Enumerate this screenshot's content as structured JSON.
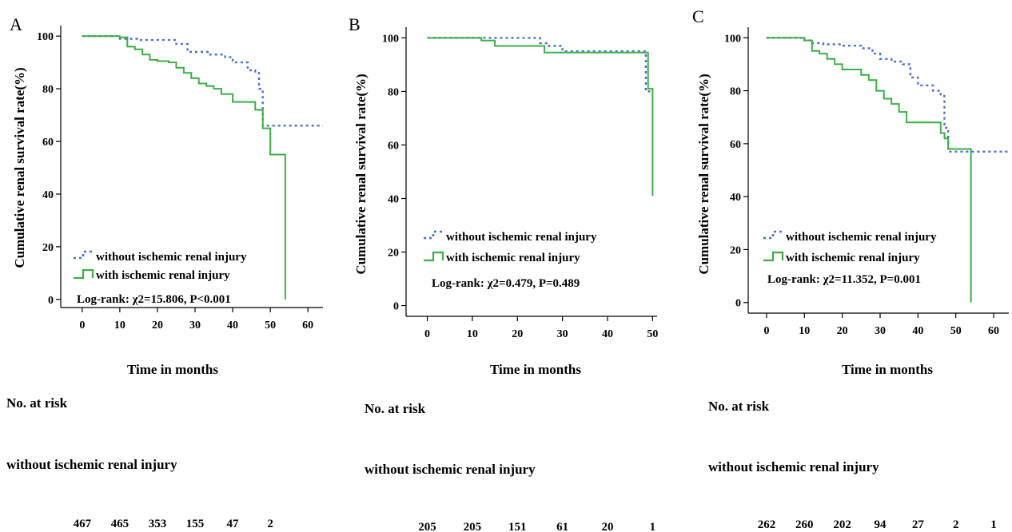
{
  "chart_data": [
    {
      "type": "line",
      "panel": "A",
      "xlabel": "Time in months",
      "ylabel": "Cumulative renal survival rate(%)",
      "xlim": [
        -4,
        64
      ],
      "ylim": [
        -4,
        104
      ],
      "xticks": [
        0,
        10,
        20,
        30,
        40,
        50,
        60
      ],
      "yticks": [
        0,
        20,
        40,
        60,
        80,
        100
      ],
      "legend": "bottom-left",
      "annotation": "Log-rank: χ2=15.806, P<0.001",
      "series": [
        {
          "name": "without ischemic renal injury",
          "color": "#4a6fd1",
          "dash": true,
          "x": [
            0,
            5,
            10,
            12,
            15,
            20,
            24,
            25,
            28,
            30,
            34,
            38,
            40,
            44,
            46,
            47,
            48,
            50,
            55,
            60,
            64
          ],
          "y": [
            100,
            100,
            99,
            99,
            98.5,
            98.5,
            98.5,
            97,
            94,
            94,
            93,
            92,
            90,
            87,
            86,
            80,
            66,
            66,
            66,
            66,
            66
          ]
        },
        {
          "name": "with ischemic renal injury",
          "color": "#3dae47",
          "dash": false,
          "x": [
            0,
            8,
            10,
            12,
            14,
            16,
            18,
            20,
            23,
            25,
            27,
            29,
            31,
            33,
            35,
            37,
            40,
            44,
            46,
            47,
            48,
            49,
            50,
            52,
            54,
            54
          ],
          "y": [
            100,
            100,
            99.5,
            96,
            95,
            93,
            91,
            90.5,
            90,
            88,
            86,
            84,
            82,
            81,
            80,
            78,
            75,
            75,
            72,
            72,
            65,
            65,
            55,
            55,
            55,
            0
          ]
        }
      ],
      "risk_table": {
        "header": "No. at risk",
        "rows": [
          {
            "label": "without ischemic renal injury",
            "x": [
              0,
              10,
              20,
              30,
              40,
              50
            ],
            "values": [
              "467",
              "465",
              "353",
              "155",
              "47",
              "2"
            ]
          }
        ]
      }
    },
    {
      "type": "line",
      "panel": "B",
      "xlabel": "Time in months",
      "ylabel": "Cumulative renal survival rate(%)",
      "xlim": [
        -4,
        51
      ],
      "ylim": [
        -4,
        104
      ],
      "xticks": [
        0,
        10,
        20,
        30,
        40,
        50
      ],
      "yticks": [
        0,
        20,
        40,
        60,
        80,
        100
      ],
      "legend": "bottom-left",
      "annotation": "Log-rank: χ2=0.479, P=0.489",
      "series": [
        {
          "name": "without  ischemic renal injury",
          "color": "#4a6fd1",
          "dash": true,
          "x": [
            0,
            10,
            20,
            24,
            25,
            27,
            30,
            35,
            40,
            45,
            48,
            48.5,
            50
          ],
          "y": [
            100,
            100,
            100,
            100,
            98,
            97,
            95,
            95,
            95,
            95,
            95,
            80,
            80
          ]
        },
        {
          "name": "with ischemic renal injury",
          "color": "#3dae47",
          "dash": false,
          "x": [
            0,
            10,
            12,
            15,
            20,
            25,
            26,
            30,
            35,
            40,
            45,
            48,
            49,
            49,
            50,
            50
          ],
          "y": [
            100,
            100,
            99,
            97,
            97,
            97,
            94.5,
            94.5,
            94.5,
            94.5,
            94.5,
            94.5,
            94.5,
            81,
            81,
            41
          ]
        }
      ],
      "risk_table": {
        "header": "No. at risk",
        "rows": [
          {
            "label": "without ischemic renal injury",
            "x": [
              0,
              10,
              20,
              30,
              40,
              50
            ],
            "values": [
              "205",
              "205",
              "151",
              "61",
              "20",
              "1"
            ]
          }
        ]
      }
    },
    {
      "type": "line",
      "panel": "C",
      "xlabel": "Time in months",
      "ylabel": "Cumulative renal survival rate(%)",
      "xlim": [
        -4,
        64
      ],
      "ylim": [
        -4,
        104
      ],
      "xticks": [
        0,
        10,
        20,
        30,
        40,
        50,
        60
      ],
      "yticks": [
        0,
        20,
        40,
        60,
        80,
        100
      ],
      "legend": "bottom-left",
      "annotation": "Log-rank: χ2=11.352, P=0.001",
      "series": [
        {
          "name": "without ischemic renal injury",
          "color": "#4a6fd1",
          "dash": true,
          "x": [
            0,
            5,
            10,
            12,
            15,
            20,
            25,
            28,
            30,
            33,
            36,
            38,
            40,
            44,
            46,
            47,
            48,
            50,
            55,
            60,
            64
          ],
          "y": [
            100,
            100,
            99,
            98,
            97.5,
            97,
            96,
            94,
            92,
            91,
            90,
            85,
            82,
            80,
            78,
            66,
            57,
            57,
            57,
            57,
            57
          ]
        },
        {
          "name": "with ischemic renal injury",
          "color": "#3dae47",
          "dash": false,
          "x": [
            0,
            8,
            10,
            12,
            14,
            16,
            18,
            20,
            23,
            25,
            27,
            29,
            31,
            33,
            35,
            37,
            40,
            44,
            46,
            47,
            48,
            50,
            54,
            54
          ],
          "y": [
            100,
            100,
            99,
            95,
            94,
            92,
            90,
            88,
            88,
            86,
            84,
            80,
            77,
            75,
            72,
            68,
            68,
            68,
            64,
            62,
            58,
            58,
            58,
            0
          ]
        }
      ],
      "risk_table": {
        "header": "No. at risk",
        "rows": [
          {
            "label": "without ischemic renal injury",
            "x": [
              0,
              10,
              20,
              30,
              40,
              50,
              60
            ],
            "values": [
              "262",
              "260",
              "202",
              "94",
              "27",
              "2",
              "1"
            ]
          }
        ]
      }
    }
  ]
}
